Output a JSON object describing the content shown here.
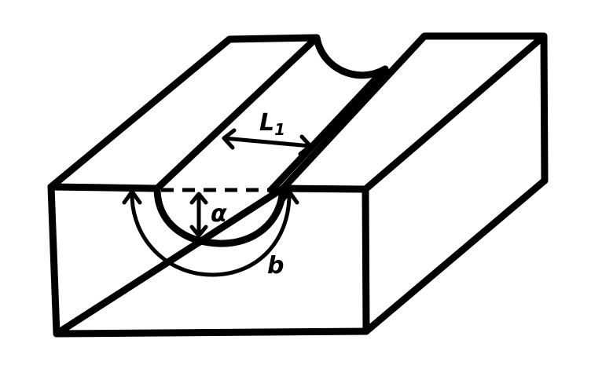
{
  "labels": {
    "groove_width": "L",
    "groove_width_subscript": "1",
    "groove_depth": "α",
    "groove_arc": "b"
  }
}
